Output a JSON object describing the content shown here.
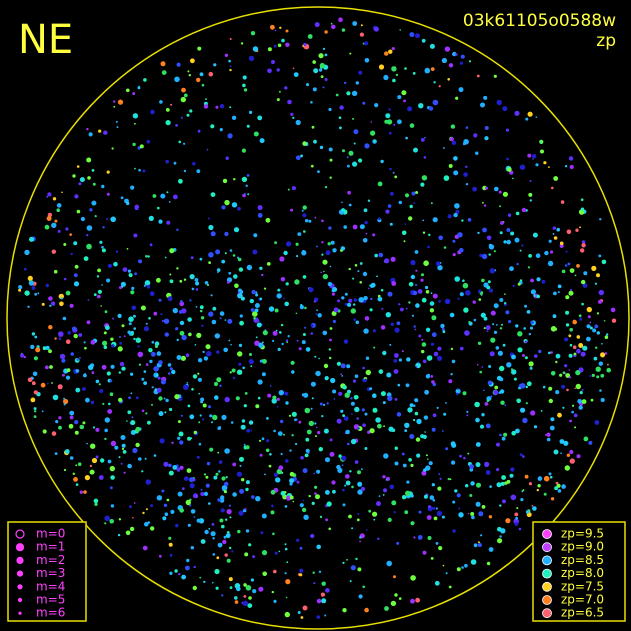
{
  "header": {
    "corner": "NE",
    "frame": "03k61105o0588w",
    "mode": "zp"
  },
  "magnitude_legend": [
    "m=0",
    "m=1",
    "m=2",
    "m=3",
    "m=4",
    "m=5",
    "m=6"
  ],
  "zeropoint_legend": [
    {
      "label": "zp=9.5",
      "color": "#ff40ff"
    },
    {
      "label": "zp=9.0",
      "color": "#c040ff"
    },
    {
      "label": "zp=8.5",
      "color": "#20b0ff"
    },
    {
      "label": "zp=8.0",
      "color": "#20f0c0"
    },
    {
      "label": "zp=7.5",
      "color": "#ffd020"
    },
    {
      "label": "zp=7.0",
      "color": "#ff8020"
    },
    {
      "label": "zp=6.5",
      "color": "#ff6070"
    }
  ]
}
